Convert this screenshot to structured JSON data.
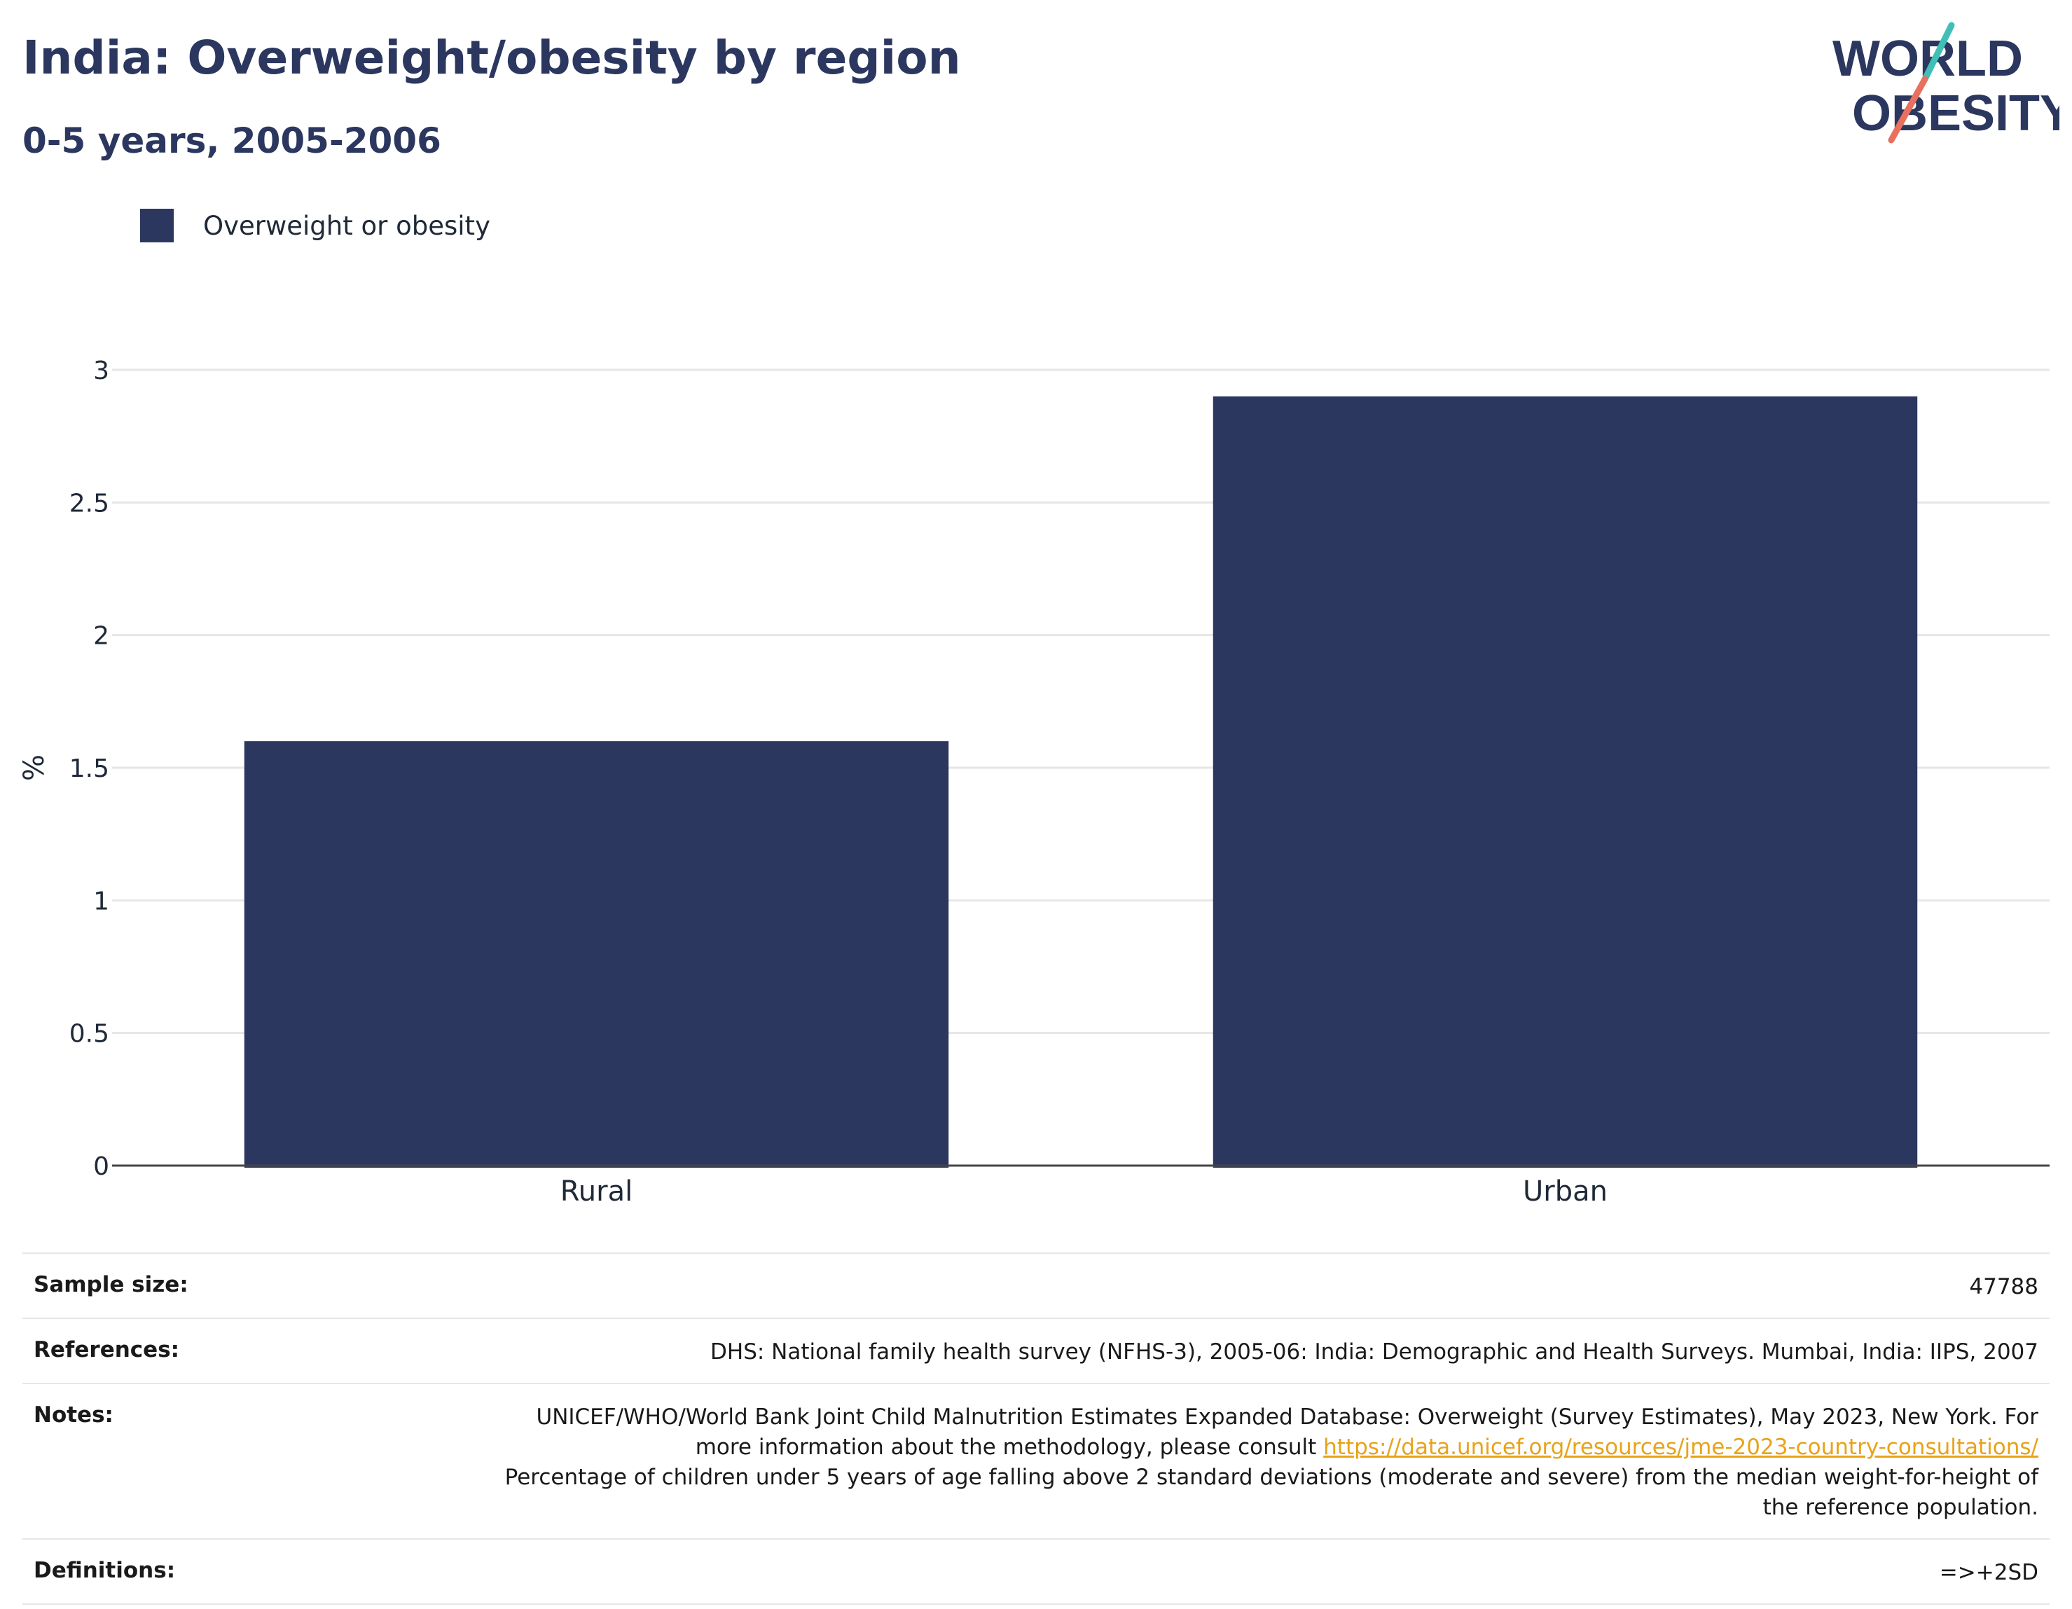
{
  "header": {
    "title": "India: Overweight/obesity by region",
    "subtitle": "0-5 years, 2005-2006"
  },
  "logo": {
    "line1": "WORLD",
    "line2": "OBESITY",
    "colors": {
      "text": "#2b375f",
      "slash_teal": "#3fbfb5",
      "slash_coral": "#e8705f"
    }
  },
  "legend": {
    "items": [
      {
        "label": "Overweight or obesity",
        "color": "#2b375f"
      }
    ]
  },
  "chart_data": {
    "type": "bar",
    "categories": [
      "Rural",
      "Urban"
    ],
    "series": [
      {
        "name": "Overweight or obesity",
        "values": [
          1.6,
          2.9
        ],
        "color": "#2b375f"
      }
    ],
    "ylabel": "%",
    "xlabel": "",
    "ylim": [
      0,
      3
    ],
    "yticks": [
      "0",
      "0.5",
      "1",
      "1.5",
      "2",
      "2.5",
      "3"
    ],
    "grid": true
  },
  "meta": {
    "sample_size_label": "Sample size:",
    "sample_size_value": "47788",
    "references_label": "References:",
    "references_value": "DHS: National family health survey (NFHS-3), 2005-06: India: Demographic and Health Surveys. Mumbai, India: IIPS, 2007",
    "notes_label": "Notes:",
    "notes_text_1": "UNICEF/WHO/World Bank Joint Child Malnutrition Estimates Expanded Database: Overweight (Survey Estimates), May 2023, New York. For more information about the methodology, please consult ",
    "notes_link": "https://data.unicef.org/resources/jme-2023-country-consultations/",
    "notes_text_2": "Percentage of children under 5 years of age falling above 2 standard deviations (moderate and severe) from the median weight-for-height of the reference population.",
    "definitions_label": "Definitions:",
    "definitions_value": "=>+2SD"
  }
}
